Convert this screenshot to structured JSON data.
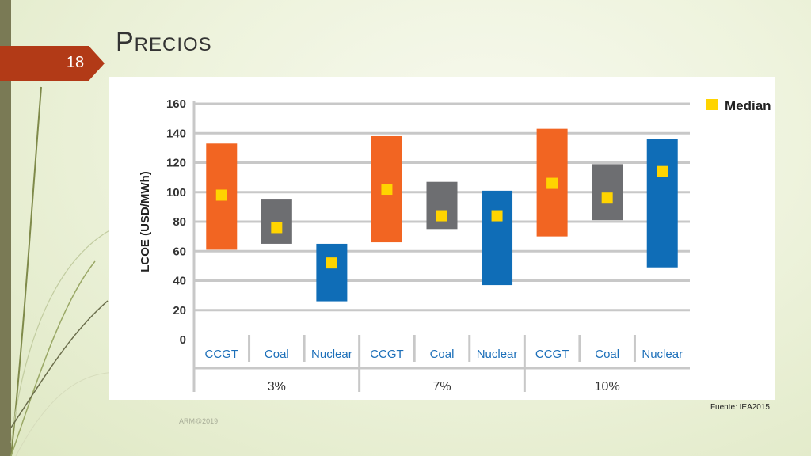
{
  "slide": {
    "number": "18",
    "title": "Precios",
    "source": "Fuente: IEA2015",
    "footer": "ARM@2019"
  },
  "colors": {
    "ccgt": "#f26522",
    "coal": "#6d6e71",
    "nuclear": "#0f6db7",
    "median": "#ffd400",
    "tab": "#b23a17"
  },
  "chart_data": {
    "type": "bar",
    "subtype": "floating-range-with-median",
    "ylabel": "LCOE (USD/MWh)",
    "ylim": [
      0,
      160
    ],
    "yticks": [
      0,
      20,
      40,
      60,
      80,
      100,
      120,
      140,
      160
    ],
    "grid": true,
    "legend": {
      "position": "top-right",
      "entries": [
        "Median"
      ]
    },
    "groups": [
      {
        "label": "3%",
        "items": [
          {
            "category": "CCGT",
            "low": 61,
            "high": 133,
            "median": 98
          },
          {
            "category": "Coal",
            "low": 65,
            "high": 95,
            "median": 76
          },
          {
            "category": "Nuclear",
            "low": 26,
            "high": 65,
            "median": 52
          }
        ]
      },
      {
        "label": "7%",
        "items": [
          {
            "category": "CCGT",
            "low": 66,
            "high": 138,
            "median": 102
          },
          {
            "category": "Coal",
            "low": 75,
            "high": 107,
            "median": 84
          },
          {
            "category": "Nuclear",
            "low": 37,
            "high": 101,
            "median": 84
          }
        ]
      },
      {
        "label": "10%",
        "items": [
          {
            "category": "CCGT",
            "low": 70,
            "high": 143,
            "median": 106
          },
          {
            "category": "Coal",
            "low": 81,
            "high": 119,
            "median": 96
          },
          {
            "category": "Nuclear",
            "low": 49,
            "high": 136,
            "median": 114
          }
        ]
      }
    ]
  }
}
